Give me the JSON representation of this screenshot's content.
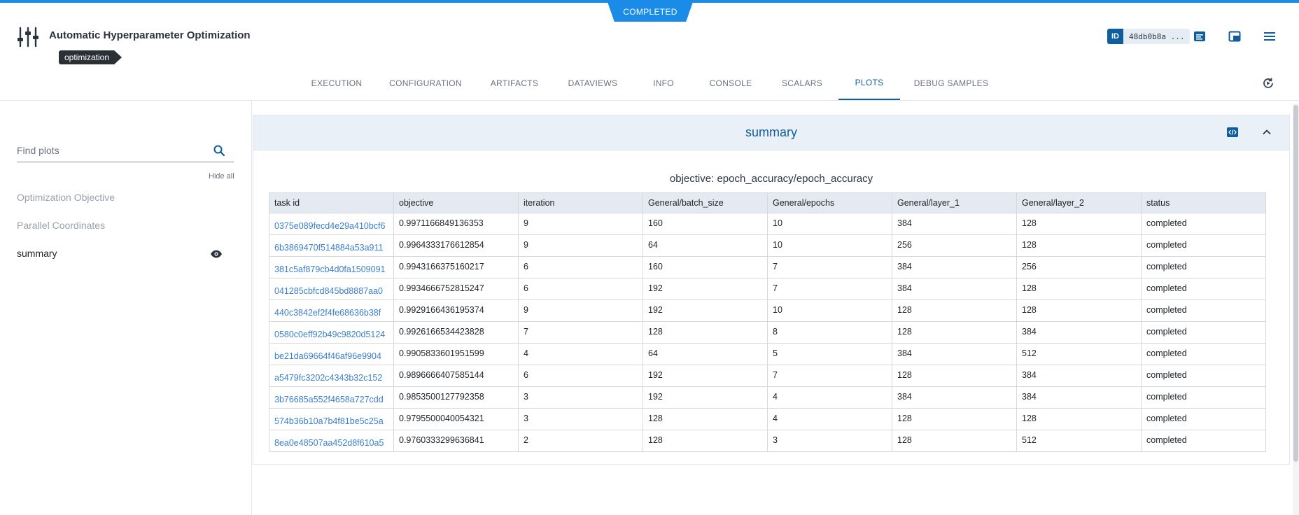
{
  "status": "COMPLETED",
  "header": {
    "title": "Automatic Hyperparameter Optimization",
    "tag": "optimization",
    "id_label": "ID",
    "id_value": "48db0b8a ...",
    "icons": [
      "sliders-icon",
      "info-panel-icon",
      "layout-icon",
      "menu-icon"
    ]
  },
  "tabs": [
    {
      "label": "EXECUTION"
    },
    {
      "label": "CONFIGURATION"
    },
    {
      "label": "ARTIFACTS"
    },
    {
      "label": "DATAVIEWS"
    },
    {
      "label": "INFO"
    },
    {
      "label": "CONSOLE"
    },
    {
      "label": "SCALARS"
    },
    {
      "label": "PLOTS",
      "active": true
    },
    {
      "label": "DEBUG SAMPLES"
    }
  ],
  "sidebar": {
    "search_placeholder": "Find plots",
    "hide_all": "Hide all",
    "items": [
      {
        "label": "Optimization Objective",
        "active": false
      },
      {
        "label": "Parallel Coordinates",
        "active": false
      },
      {
        "label": "summary",
        "active": true
      }
    ]
  },
  "panel": {
    "title": "summary",
    "table_title": "objective: epoch_accuracy/epoch_accuracy",
    "columns": [
      "task id",
      "objective",
      "iteration",
      "General/batch_size",
      "General/epochs",
      "General/layer_1",
      "General/layer_2",
      "status"
    ],
    "rows": [
      [
        "0375e089fecd4e29a410bcf6",
        "0.9971166849136353",
        "9",
        "160",
        "10",
        "384",
        "128",
        "completed"
      ],
      [
        "6b3869470f514884a53a911",
        "0.9964333176612854",
        "9",
        "64",
        "10",
        "256",
        "128",
        "completed"
      ],
      [
        "381c5af879cb4d0fa1509091",
        "0.9943166375160217",
        "6",
        "160",
        "7",
        "384",
        "256",
        "completed"
      ],
      [
        "041285cbfcd845bd8887aa0",
        "0.9934666752815247",
        "6",
        "192",
        "7",
        "384",
        "128",
        "completed"
      ],
      [
        "440c3842ef2f4fe68636b38f",
        "0.9929166436195374",
        "9",
        "192",
        "10",
        "128",
        "128",
        "completed"
      ],
      [
        "0580c0eff92b49c9820d5124",
        "0.9926166534423828",
        "7",
        "128",
        "8",
        "128",
        "384",
        "completed"
      ],
      [
        "be21da69664f46af96e9904",
        "0.9905833601951599",
        "4",
        "64",
        "5",
        "384",
        "512",
        "completed"
      ],
      [
        "a5479fc3202c4343b32c152",
        "0.9896666407585144",
        "6",
        "192",
        "7",
        "128",
        "384",
        "completed"
      ],
      [
        "3b76685a552f4658a727cdd",
        "0.9853500127792358",
        "3",
        "192",
        "4",
        "384",
        "384",
        "completed"
      ],
      [
        "574b36b10a7b4f81be5c25a",
        "0.9795500040054321",
        "3",
        "128",
        "4",
        "128",
        "128",
        "completed"
      ],
      [
        "8ea0e48507aa452d8f610a5",
        "0.9760333299636841",
        "2",
        "128",
        "3",
        "128",
        "512",
        "completed"
      ]
    ]
  },
  "colors": {
    "accent": "#0f5d9e",
    "status_bar": "#1a8ce8",
    "link": "#3b7fd1"
  }
}
